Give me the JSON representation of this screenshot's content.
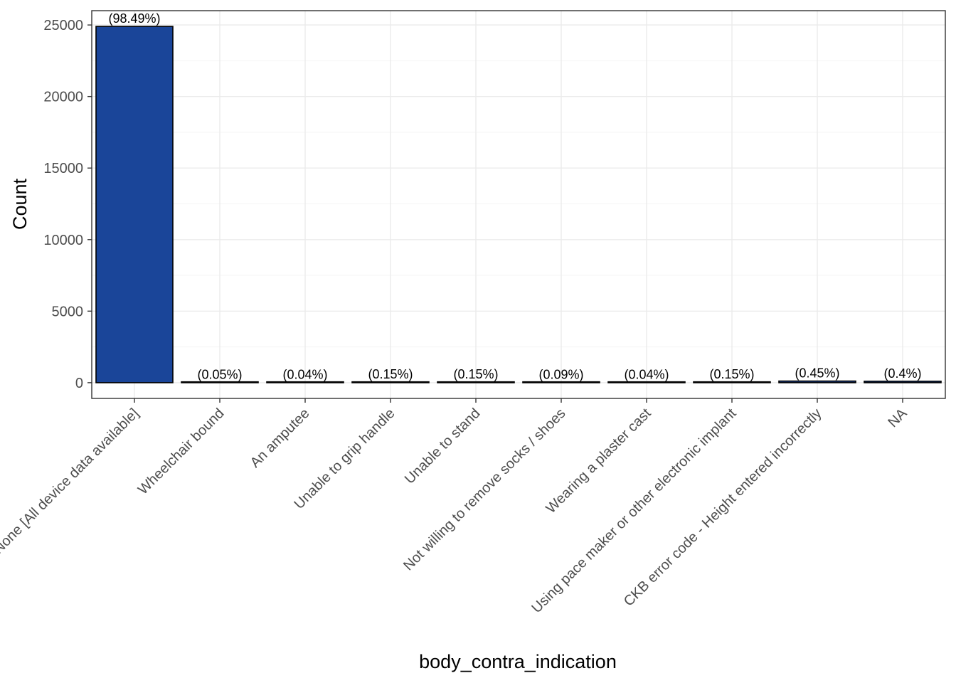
{
  "chart_data": {
    "type": "bar",
    "title": "",
    "xlabel": "body_contra_indication",
    "ylabel": "Count",
    "ylim": [
      -1100,
      26000
    ],
    "yticks": [
      0,
      5000,
      10000,
      15000,
      20000,
      25000
    ],
    "grid": true,
    "legend": "none",
    "categories": [
      "None [All device data available]",
      "Wheelchair bound",
      "An amputee",
      "Unable to grip handle",
      "Unable to stand",
      "Not willing to remove socks / shoes",
      "Wearing a plaster cast",
      "Using pace maker or other electronic implant",
      "CKB error code - Height entered incorrectly",
      "NA"
    ],
    "values": [
      24900,
      13,
      10,
      38,
      38,
      23,
      10,
      38,
      114,
      101
    ],
    "labels": [
      "(98.49%)",
      "(0.05%)",
      "(0.04%)",
      "(0.15%)",
      "(0.15%)",
      "(0.09%)",
      "(0.04%)",
      "(0.15%)",
      "(0.45%)",
      "(0.4%)"
    ],
    "colors": {
      "bar_fill": "#1a4599",
      "bar_stroke": "#000000",
      "grid_major": "#ebebeb",
      "grid_minor": "#f5f5f5",
      "panel_border": "#333333",
      "tick_text": "#4d4d4d"
    }
  }
}
